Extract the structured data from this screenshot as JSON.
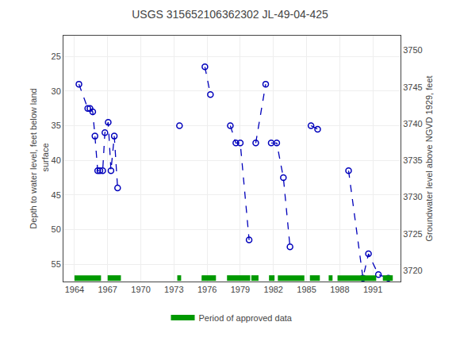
{
  "chart_data": {
    "type": "line",
    "title": "USGS 315652106362302 JL-49-04-425",
    "y_label": "Depth to water level, feet below land\n surface",
    "y2_label": "Groundwater level above NGVD 1929, feet",
    "xlim": [
      1963.0,
      1993.5
    ],
    "xticks": [
      1964,
      1967,
      1970,
      1973,
      1976,
      1979,
      1982,
      1985,
      1988,
      1991
    ],
    "ylim": [
      57.5,
      22.0
    ],
    "yticks": [
      25,
      30,
      35,
      40,
      45,
      50,
      55
    ],
    "y2lim": [
      3718.5,
      3752.0
    ],
    "y2ticks": [
      3750,
      3745,
      3740,
      3735,
      3730,
      3725,
      3720
    ],
    "grid": true,
    "legend": "bottom",
    "series": [
      {
        "x": [
          1964.4,
          1965.2,
          1965.4,
          1965.65,
          1965.85,
          1966.1,
          1966.3,
          1966.55,
          1966.75,
          1967.05,
          1967.3,
          1967.6,
          1967.9
        ],
        "values": [
          29.0,
          32.5,
          32.5,
          33.0,
          36.5,
          41.5,
          41.5,
          41.5,
          36.0,
          34.5,
          41.5,
          36.5,
          44.0
        ],
        "color": "#0000BB",
        "marker": "circle-open",
        "line_style": "dash"
      },
      {
        "x": [
          1973.5
        ],
        "values": [
          35.0
        ],
        "color": "#0000BB",
        "marker": "circle-open",
        "line_style": "dash"
      },
      {
        "x": [
          1975.8,
          1976.3
        ],
        "values": [
          26.5,
          30.5
        ],
        "color": "#0000BB",
        "marker": "circle-open",
        "line_style": "dash"
      },
      {
        "x": [
          1978.1,
          1978.6,
          1979.0,
          1979.8
        ],
        "values": [
          35.0,
          37.5,
          37.5,
          51.5
        ],
        "color": "#0000BB",
        "marker": "circle-open",
        "line_style": "dash"
      },
      {
        "x": [
          1980.4,
          1981.3
        ],
        "values": [
          37.5,
          29.0
        ],
        "color": "#0000BB",
        "marker": "circle-open",
        "line_style": "dash"
      },
      {
        "x": [
          1981.8,
          1982.3,
          1982.9,
          1983.5
        ],
        "values": [
          37.5,
          37.5,
          42.5,
          52.5
        ],
        "color": "#0000BB",
        "marker": "circle-open",
        "line_style": "dash"
      },
      {
        "x": [
          1985.4,
          1986.0
        ],
        "values": [
          35.0,
          35.5
        ],
        "color": "#0000BB",
        "marker": "circle-open",
        "line_style": "dash"
      },
      {
        "x": [
          1988.8,
          1990.1,
          1990.6,
          1991.5,
          1992.4
        ],
        "values": [
          41.5,
          57.0,
          53.5,
          56.5,
          57.0
        ],
        "color": "#0000BB",
        "marker": "circle-open",
        "line_style": "dash"
      },
      {
        "name": "Period of approved data",
        "type": "period",
        "color": "#009900",
        "y": 57.0,
        "periods": [
          [
            1964.0,
            1966.4
          ],
          [
            1967.0,
            1968.2
          ],
          [
            1973.3,
            1973.65
          ],
          [
            1975.5,
            1976.8
          ],
          [
            1977.8,
            1979.9
          ],
          [
            1980.0,
            1980.65
          ],
          [
            1981.6,
            1982.1
          ],
          [
            1982.4,
            1984.8
          ],
          [
            1985.3,
            1986.2
          ],
          [
            1987.0,
            1987.35
          ],
          [
            1987.8,
            1991.3
          ],
          [
            1991.9,
            1992.8
          ]
        ]
      }
    ]
  }
}
